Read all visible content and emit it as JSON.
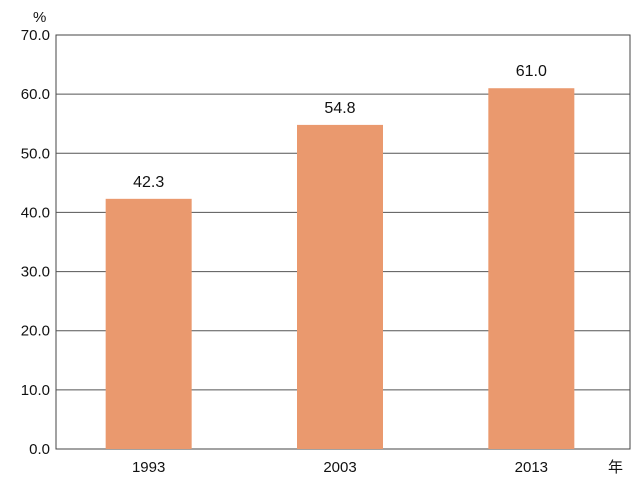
{
  "chart_data": {
    "type": "bar",
    "categories": [
      "1993",
      "2003",
      "2013"
    ],
    "values": [
      42.3,
      54.8,
      61.0
    ],
    "value_labels": [
      "42.3",
      "54.8",
      "61.0"
    ],
    "title": "",
    "xlabel": "年",
    "ylabel": "%",
    "ylim": [
      0,
      70
    ],
    "yticks": [
      "0.0",
      "10.0",
      "20.0",
      "30.0",
      "40.0",
      "50.0",
      "60.0",
      "70.0"
    ],
    "grid": true,
    "legend": "none",
    "bar_color": "#EA996E",
    "gridline_color": "#555555"
  }
}
